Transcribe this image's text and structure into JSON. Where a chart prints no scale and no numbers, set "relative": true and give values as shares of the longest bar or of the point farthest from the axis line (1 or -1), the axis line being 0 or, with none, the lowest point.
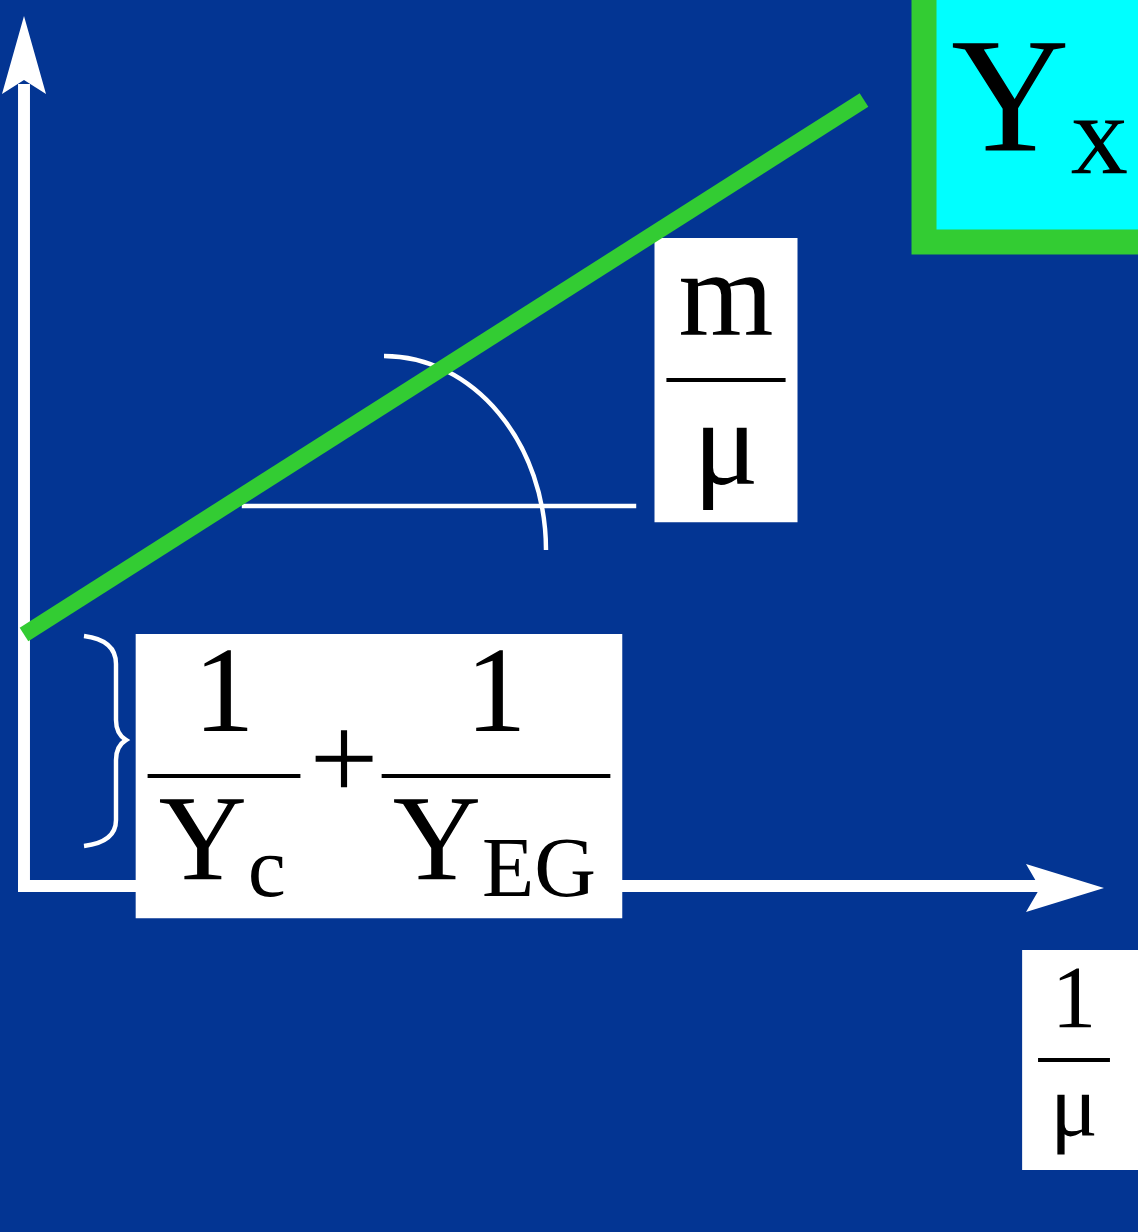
{
  "chart_data": {
    "type": "line",
    "relative": true,
    "categories": [
      null,
      null
    ],
    "series": [
      {
        "color": "#33cc33",
        "values": [
          0.32,
          1
        ]
      }
    ],
    "xlabel": "1\nμ",
    "annotations": [
      "m\nμ",
      "1\nY$_{c}$",
      "+",
      "1\nY$_{EG}$",
      "Y$_{x}$"
    ]
  }
}
